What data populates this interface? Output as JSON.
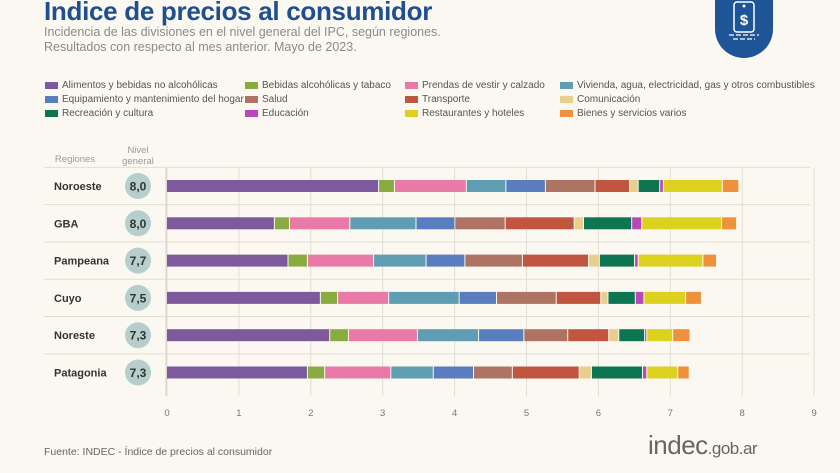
{
  "header": {
    "title": "Indice de precios al consumidor",
    "subtitle_1": "Incidencia de las divisiones en el nivel general del IPC, según regiones.",
    "subtitle_2": "Resultados con respecto al mes anterior. Mayo de 2023.",
    "logo_icon": "price-tag-dollar-icon",
    "logo_color": "#1d5596"
  },
  "chart_data": {
    "type": "bar",
    "orientation": "horizontal",
    "stacked": true,
    "title": "Indice de precios al consumidor",
    "row_header": "Regiones",
    "total_header": "Nivel general",
    "categories": [
      "Noroeste",
      "GBA",
      "Pampeana",
      "Cuyo",
      "Noreste",
      "Patagonia"
    ],
    "totals": [
      "8,0",
      "8,0",
      "7,7",
      "7,5",
      "7,3",
      "7,3"
    ],
    "xlim": [
      0,
      9
    ],
    "xticks": [
      "0",
      "1",
      "2",
      "3",
      "4",
      "5",
      "6",
      "7",
      "8",
      "9"
    ],
    "grid": true,
    "legend_position": "top",
    "series": [
      {
        "name": "Alimentos y bebidas no alcohólicas",
        "color": "#7d5a9c",
        "values": [
          2.95,
          1.5,
          1.69,
          2.14,
          2.27,
          1.96
        ]
      },
      {
        "name": "Bebidas alcohólicas y tabaco",
        "color": "#8aab3f",
        "values": [
          0.22,
          0.21,
          0.27,
          0.24,
          0.26,
          0.24
        ]
      },
      {
        "name": "Prendas de vestir y calzado",
        "color": "#e97aa7",
        "values": [
          1.0,
          0.84,
          0.92,
          0.71,
          0.96,
          0.92
        ]
      },
      {
        "name": "Vivienda, agua, electricidad, gas y otros combustibles",
        "color": "#5f9db2",
        "values": [
          0.55,
          0.92,
          0.73,
          0.98,
          0.85,
          0.59
        ]
      },
      {
        "name": "Equipamiento y mantenimiento del hogar",
        "color": "#5a7dbf",
        "values": [
          0.55,
          0.54,
          0.54,
          0.52,
          0.63,
          0.56
        ]
      },
      {
        "name": "Salud",
        "color": "#ad7464",
        "values": [
          0.69,
          0.7,
          0.8,
          0.83,
          0.61,
          0.54
        ]
      },
      {
        "name": "Transporte",
        "color": "#c05640",
        "values": [
          0.48,
          0.96,
          0.92,
          0.62,
          0.57,
          0.93
        ]
      },
      {
        "name": "Comunicación",
        "color": "#e8cf8e",
        "values": [
          0.12,
          0.13,
          0.15,
          0.1,
          0.14,
          0.17
        ]
      },
      {
        "name": "Recreación y cultura",
        "color": "#0e7553",
        "values": [
          0.3,
          0.67,
          0.49,
          0.38,
          0.36,
          0.71
        ]
      },
      {
        "name": "Educación",
        "color": "#b847b8",
        "values": [
          0.05,
          0.14,
          0.05,
          0.12,
          0.03,
          0.06
        ]
      },
      {
        "name": "Restaurantes y hoteles",
        "color": "#dcd11f",
        "values": [
          0.82,
          1.11,
          0.9,
          0.58,
          0.36,
          0.43
        ]
      },
      {
        "name": "Bienes y servicios varios",
        "color": "#ef913c",
        "values": [
          0.23,
          0.21,
          0.19,
          0.22,
          0.24,
          0.16
        ]
      }
    ]
  },
  "footer": {
    "source": "Fuente: INDEC - Índice de precios al consumidor",
    "brand_main": "indec",
    "brand_suffix": ".gob.ar"
  }
}
